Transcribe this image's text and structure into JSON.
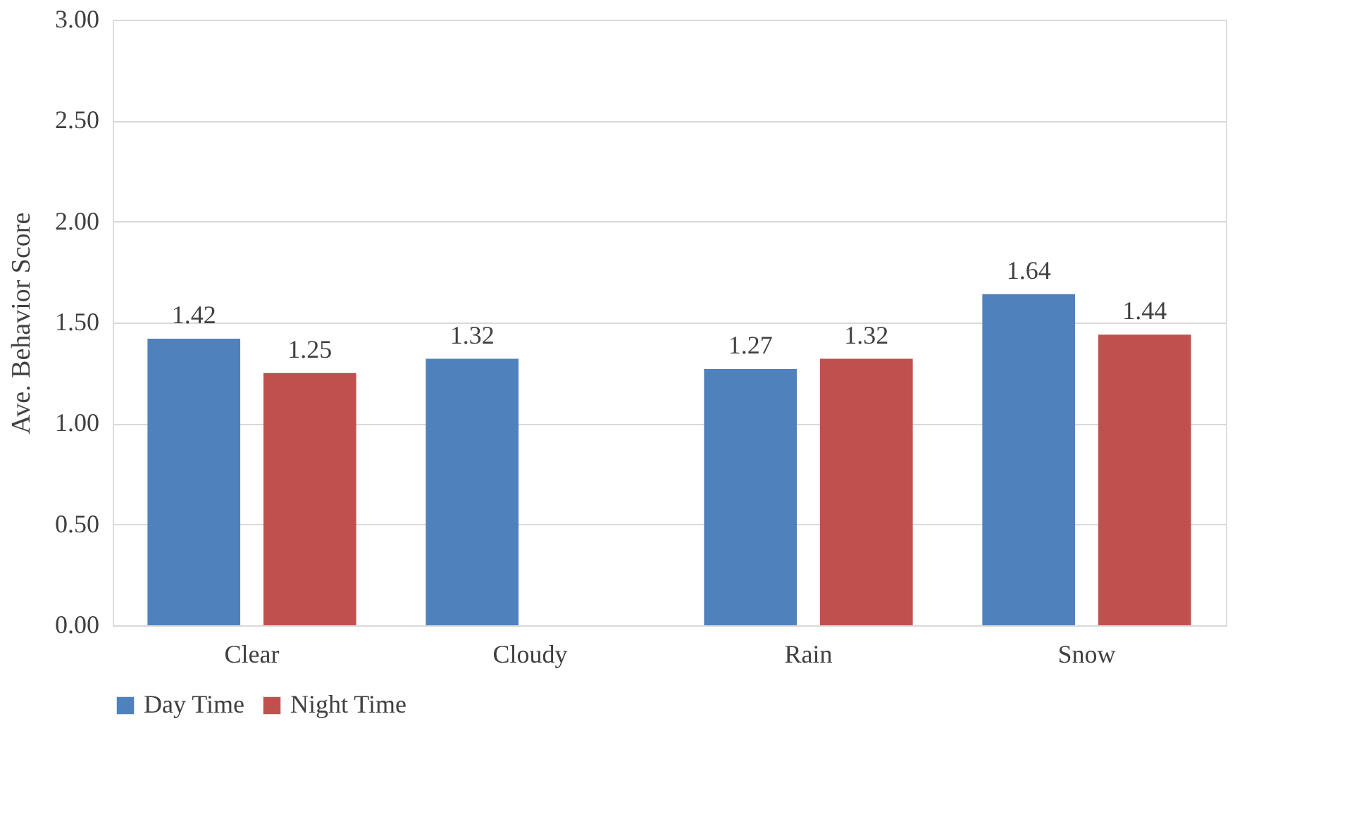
{
  "chart_data": {
    "type": "bar",
    "ylabel": "Ave. Behavior Score",
    "categories": [
      "Clear",
      "Cloudy",
      "Rain",
      "Snow"
    ],
    "series": [
      {
        "name": "Day Time",
        "color": "#4f81bd",
        "values": [
          1.42,
          1.32,
          1.27,
          1.64
        ]
      },
      {
        "name": "Night Time",
        "color": "#c0504d",
        "values": [
          1.25,
          null,
          1.32,
          1.44
        ]
      }
    ],
    "ylim": [
      0,
      3
    ],
    "yticks": [
      {
        "value": 0,
        "label": "0.00"
      },
      {
        "value": 0.5,
        "label": "0.50"
      },
      {
        "value": 1,
        "label": "1.00"
      },
      {
        "value": 1.5,
        "label": "1.50"
      },
      {
        "value": 2,
        "label": "2.00"
      },
      {
        "value": 2.5,
        "label": "2.50"
      },
      {
        "value": 3,
        "label": "3.00"
      }
    ],
    "grid": "y",
    "legend": "bottom",
    "data_labels": true
  }
}
